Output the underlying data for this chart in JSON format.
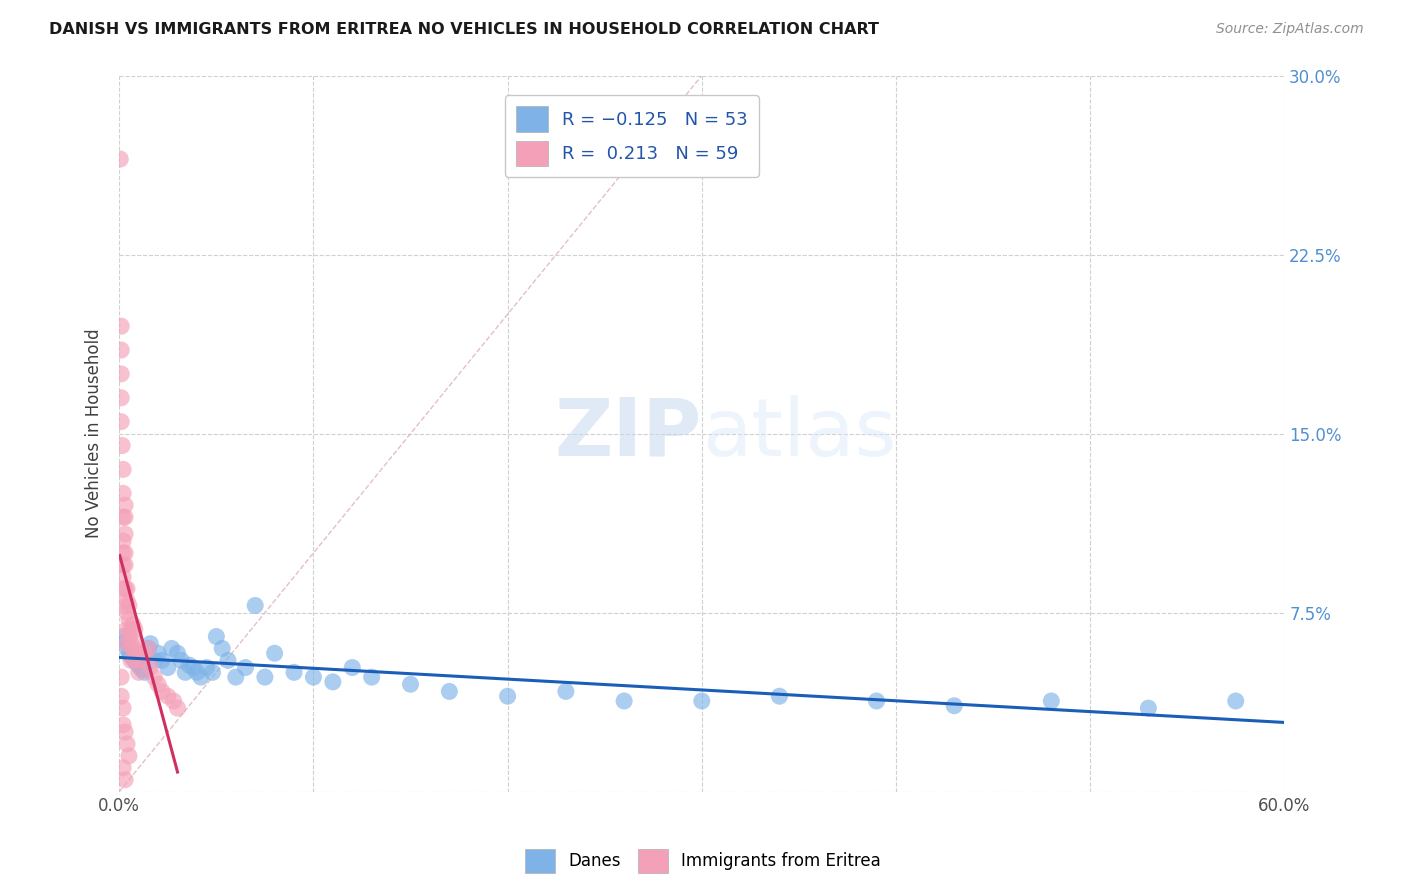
{
  "title": "DANISH VS IMMIGRANTS FROM ERITREA NO VEHICLES IN HOUSEHOLD CORRELATION CHART",
  "source": "Source: ZipAtlas.com",
  "ylabel": "No Vehicles in Household",
  "xlim": [
    0.0,
    0.6
  ],
  "ylim": [
    0.0,
    0.3
  ],
  "xticks": [
    0.0,
    0.1,
    0.2,
    0.3,
    0.4,
    0.5,
    0.6
  ],
  "yticks": [
    0.0,
    0.075,
    0.15,
    0.225,
    0.3
  ],
  "ytick_labels": [
    "",
    "7.5%",
    "15.0%",
    "22.5%",
    "30.0%"
  ],
  "danes_color": "#7fb3e8",
  "eritrea_color": "#f4a0b8",
  "danes_trend_color": "#1a5eb8",
  "eritrea_trend_color": "#d03060",
  "ref_line_color": "#e0b8c0",
  "watermark_zip": "ZIP",
  "watermark_atlas": "atlas",
  "danes_x": [
    0.002,
    0.003,
    0.004,
    0.005,
    0.006,
    0.007,
    0.008,
    0.009,
    0.01,
    0.011,
    0.012,
    0.013,
    0.015,
    0.016,
    0.018,
    0.02,
    0.022,
    0.025,
    0.027,
    0.03,
    0.032,
    0.034,
    0.036,
    0.038,
    0.04,
    0.042,
    0.045,
    0.048,
    0.05,
    0.053,
    0.056,
    0.06,
    0.065,
    0.07,
    0.075,
    0.08,
    0.09,
    0.1,
    0.11,
    0.12,
    0.13,
    0.15,
    0.17,
    0.2,
    0.23,
    0.26,
    0.3,
    0.34,
    0.39,
    0.43,
    0.48,
    0.53,
    0.575
  ],
  "danes_y": [
    0.065,
    0.063,
    0.06,
    0.058,
    0.057,
    0.056,
    0.055,
    0.054,
    0.053,
    0.052,
    0.051,
    0.05,
    0.06,
    0.062,
    0.055,
    0.058,
    0.055,
    0.052,
    0.06,
    0.058,
    0.055,
    0.05,
    0.053,
    0.052,
    0.05,
    0.048,
    0.052,
    0.05,
    0.065,
    0.06,
    0.055,
    0.048,
    0.052,
    0.078,
    0.048,
    0.058,
    0.05,
    0.048,
    0.046,
    0.052,
    0.048,
    0.045,
    0.042,
    0.04,
    0.042,
    0.038,
    0.038,
    0.04,
    0.038,
    0.036,
    0.038,
    0.035,
    0.038
  ],
  "eritrea_x": [
    0.0005,
    0.001,
    0.001,
    0.001,
    0.001,
    0.001,
    0.0015,
    0.002,
    0.002,
    0.002,
    0.002,
    0.002,
    0.002,
    0.002,
    0.002,
    0.003,
    0.003,
    0.003,
    0.003,
    0.003,
    0.003,
    0.003,
    0.004,
    0.004,
    0.004,
    0.004,
    0.004,
    0.005,
    0.005,
    0.005,
    0.006,
    0.006,
    0.006,
    0.007,
    0.007,
    0.008,
    0.008,
    0.009,
    0.01,
    0.01,
    0.012,
    0.013,
    0.015,
    0.016,
    0.018,
    0.02,
    0.022,
    0.025,
    0.028,
    0.03,
    0.001,
    0.001,
    0.002,
    0.002,
    0.003,
    0.004,
    0.005,
    0.002,
    0.003
  ],
  "eritrea_y": [
    0.265,
    0.195,
    0.185,
    0.175,
    0.165,
    0.155,
    0.145,
    0.135,
    0.125,
    0.115,
    0.105,
    0.1,
    0.095,
    0.09,
    0.085,
    0.12,
    0.115,
    0.108,
    0.1,
    0.095,
    0.085,
    0.078,
    0.085,
    0.08,
    0.075,
    0.068,
    0.062,
    0.078,
    0.072,
    0.065,
    0.068,
    0.062,
    0.055,
    0.07,
    0.06,
    0.068,
    0.055,
    0.062,
    0.058,
    0.05,
    0.055,
    0.058,
    0.06,
    0.052,
    0.048,
    0.045,
    0.042,
    0.04,
    0.038,
    0.035,
    0.048,
    0.04,
    0.035,
    0.028,
    0.025,
    0.02,
    0.015,
    0.01,
    0.005
  ]
}
